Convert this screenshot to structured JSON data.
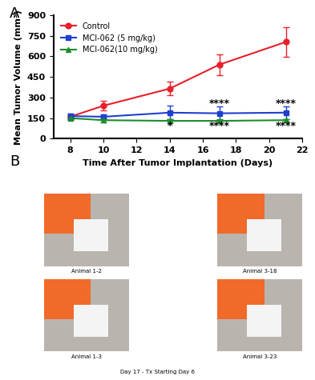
{
  "chart_data": {
    "type": "line",
    "x_label": "Time After Tumor Implantation (Days)",
    "y_label": "Mean Tumor Volume (mm³)",
    "x": [
      8,
      10,
      14,
      17,
      21
    ],
    "xlim": [
      7,
      22
    ],
    "xticks": [
      8,
      10,
      12,
      14,
      16,
      18,
      20,
      22
    ],
    "ylim": [
      0,
      900
    ],
    "yticks": [
      0,
      150,
      300,
      450,
      600,
      750,
      900
    ],
    "legend": "upper left",
    "series": [
      {
        "name": "Control",
        "color": "#e8202a",
        "marker": "circle",
        "values": [
          160,
          240,
          365,
          540,
          705
        ],
        "errors": [
          20,
          35,
          50,
          75,
          110
        ]
      },
      {
        "name": "MCI-062 (5 mg/kg)",
        "color": "#1f3fd0",
        "marker": "square",
        "values": [
          165,
          160,
          190,
          185,
          190
        ],
        "errors": [
          20,
          20,
          50,
          50,
          45
        ]
      },
      {
        "name": "MCI-062(10 mg/kg)",
        "color": "#1e8c2e",
        "marker": "triangle",
        "values": [
          150,
          135,
          130,
          130,
          135
        ],
        "errors": [
          15,
          15,
          10,
          10,
          10
        ]
      }
    ],
    "annotations": [
      {
        "text": "*",
        "x": 14,
        "y": 95
      },
      {
        "text": "****",
        "x": 17,
        "y": 255
      },
      {
        "text": "****",
        "x": 17,
        "y": 90
      },
      {
        "text": "****",
        "x": 21,
        "y": 255
      },
      {
        "text": "****",
        "x": 21,
        "y": 90
      }
    ]
  },
  "panel_labels": [
    "A",
    "B"
  ],
  "photos": {
    "captions": [
      "Animal 1-2",
      "Animal 3-18",
      "Animal 1-3",
      "Animal 3-23"
    ],
    "footer": "Day 17 - Tx Starting Day 6"
  }
}
